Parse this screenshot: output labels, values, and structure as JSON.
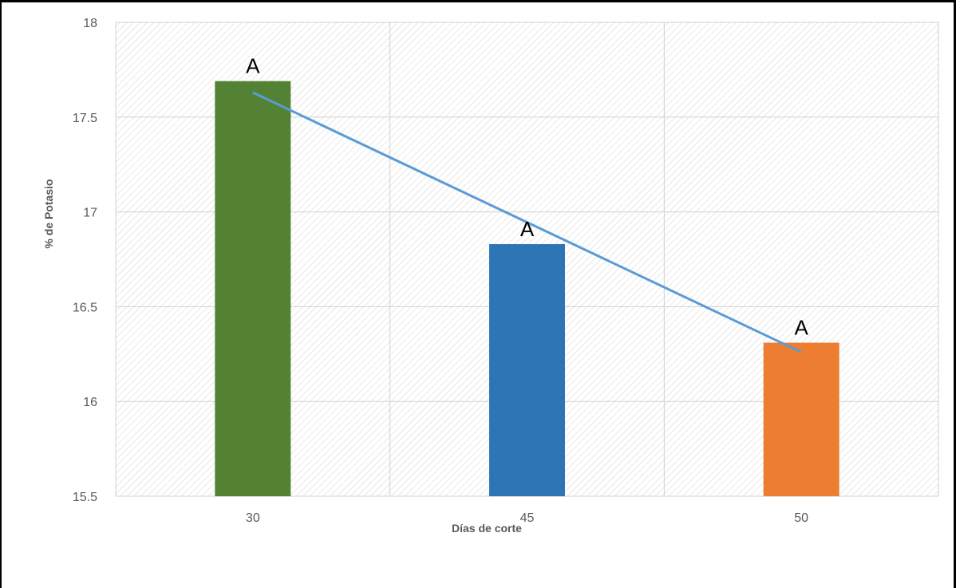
{
  "chart_data": {
    "type": "bar",
    "title": "",
    "xlabel": "Días de corte",
    "ylabel": "% de  Potasio",
    "categories": [
      "30",
      "45",
      "50"
    ],
    "values": [
      17.69,
      16.83,
      16.31
    ],
    "bar_colors": [
      "#548235",
      "#2E75B6",
      "#ED7D31"
    ],
    "bar_labels": [
      "A",
      "A",
      "A"
    ],
    "ylim": [
      15.5,
      18
    ],
    "yticks": [
      "15.5",
      "16",
      "16.5",
      "17",
      "17.5",
      "18"
    ],
    "grid": true,
    "plot_background": "diagonal hatch",
    "trendline": {
      "type": "linear",
      "color": "#5B9BD5",
      "start_value": 17.63,
      "end_value": 16.26
    }
  }
}
